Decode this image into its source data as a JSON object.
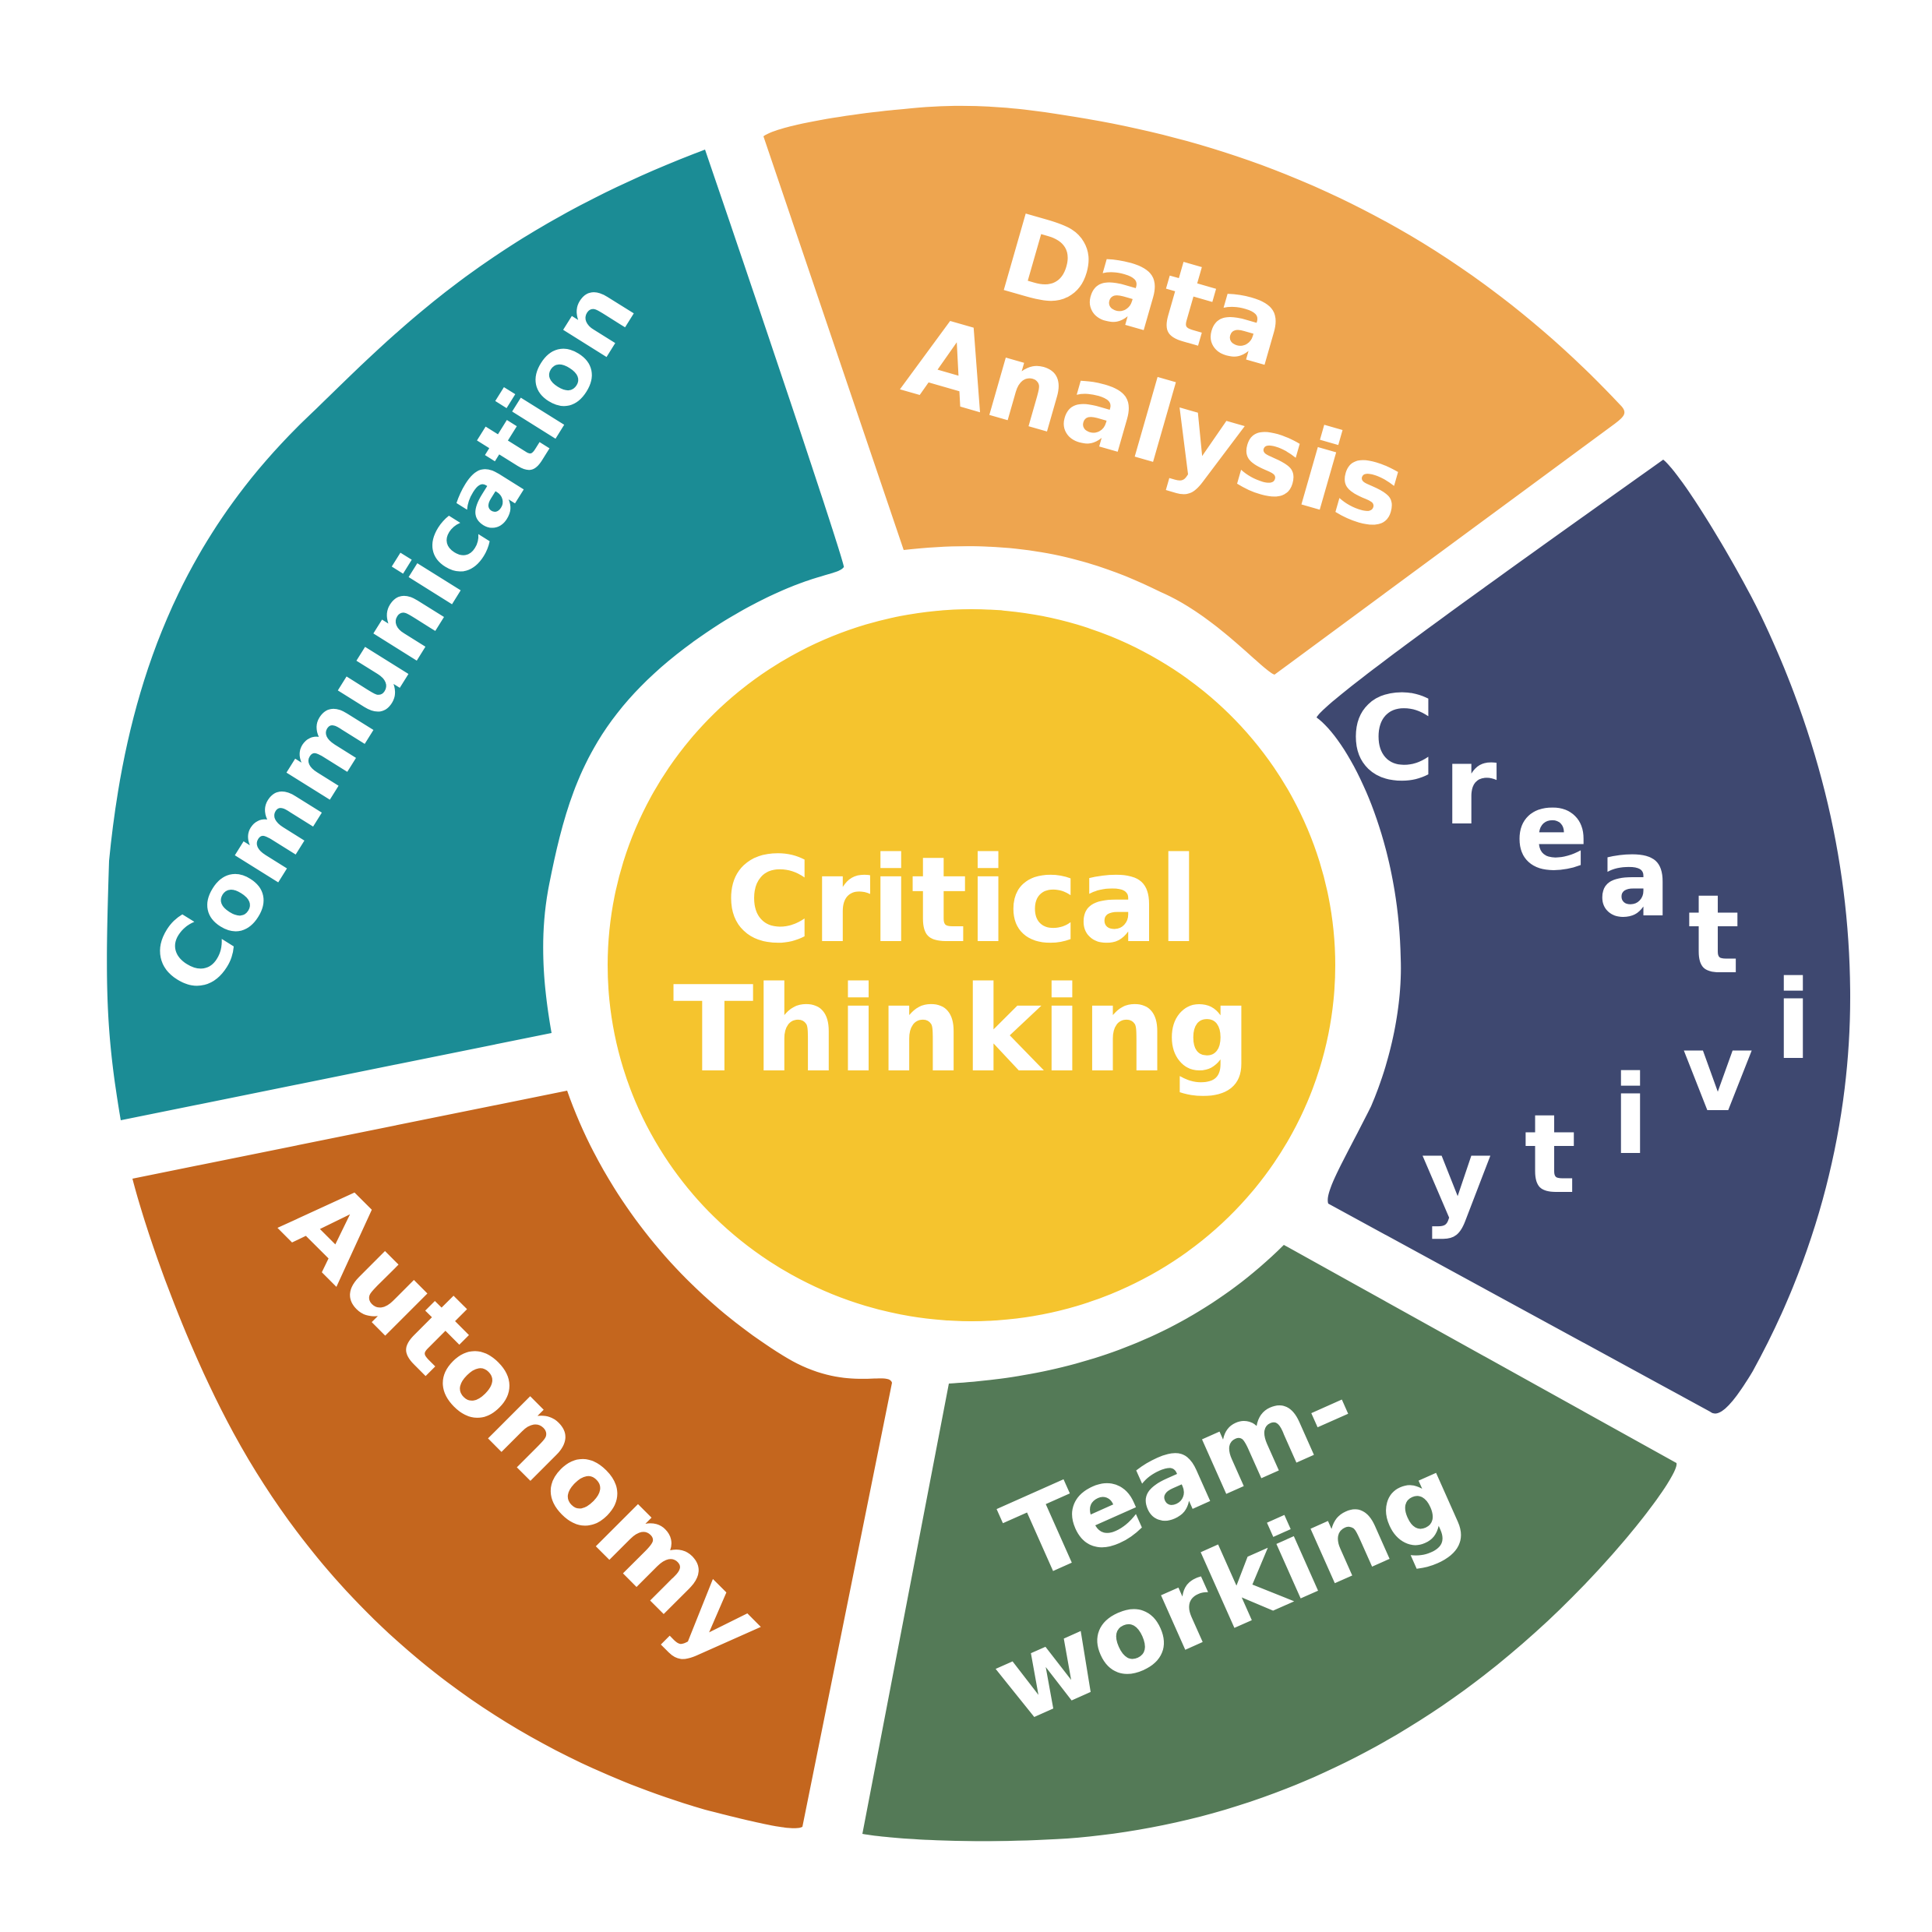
{
  "center": {
    "line1": "Critical",
    "line2": "Thinking",
    "color": "#f5c42e"
  },
  "segments": [
    {
      "id": "communication",
      "label": "Communication",
      "color": "#1b8c95"
    },
    {
      "id": "data-analysis",
      "line1": "Data",
      "line2": "Analysis",
      "color": "#eea54f"
    },
    {
      "id": "creativity",
      "letters": [
        "C",
        "r",
        "e",
        "a",
        "t",
        "i",
        "v",
        "i",
        "t",
        "y"
      ],
      "color": "#3e4870"
    },
    {
      "id": "team-working",
      "line1": "Team-",
      "line2": "working",
      "color": "#547a57"
    },
    {
      "id": "autonomy",
      "label": "Autonomy",
      "color": "#c4661e"
    }
  ],
  "background": "#ffffff"
}
